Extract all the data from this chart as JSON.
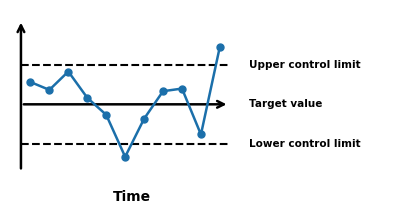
{
  "target": 0,
  "ucl": 1.5,
  "lcl": -1.5,
  "x_data": [
    0,
    1,
    2,
    3,
    4,
    5,
    6,
    7,
    8,
    9,
    10
  ],
  "y_data": [
    0.85,
    0.55,
    1.25,
    0.25,
    -0.4,
    -2.0,
    -0.55,
    0.5,
    0.6,
    -1.15,
    2.2
  ],
  "line_color": "#1B6FAA",
  "dot_color": "#1B6FAA",
  "ucl_label": "Upper control limit",
  "target_label": "Target value",
  "lcl_label": "Lower control limit",
  "xlabel": "Time",
  "xlim": [
    -0.5,
    11.0
  ],
  "ylim": [
    -3.0,
    3.5
  ],
  "background_color": "#ffffff"
}
